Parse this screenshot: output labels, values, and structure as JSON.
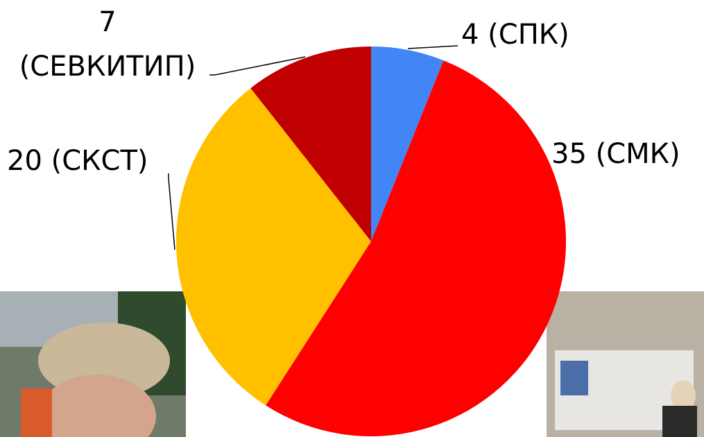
{
  "chart_data": {
    "type": "pie",
    "values": [
      4,
      35,
      20,
      7
    ],
    "value_labels": [
      "4 (СПК)",
      "35 (СМК)",
      "20 (СКСТ)",
      "7\n(СЕВКИТИП)"
    ],
    "colors": [
      "#4285f4",
      "#ff0000",
      "#ffc000",
      "#c00000"
    ]
  }
}
